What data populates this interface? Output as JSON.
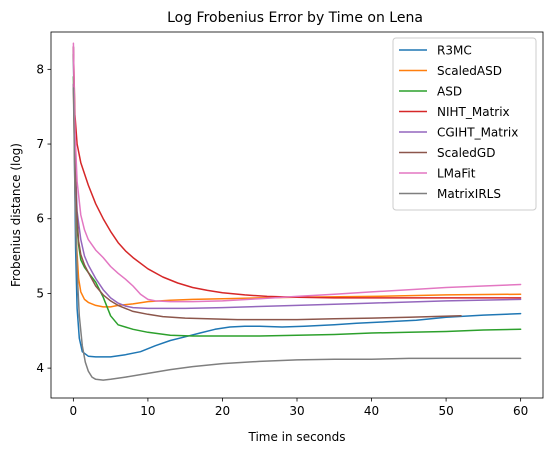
{
  "chart_data": {
    "type": "line",
    "title": "Log Frobenius Error by Time on Lena",
    "xlabel": "Time in seconds",
    "ylabel": "Frobenius distance (log)",
    "xlim": [
      -3,
      63
    ],
    "ylim": [
      3.6,
      8.5
    ],
    "xticks": [
      0,
      10,
      20,
      30,
      40,
      50,
      60
    ],
    "yticks": [
      4,
      5,
      6,
      7,
      8
    ],
    "grid": false,
    "legend_position": "top-right",
    "series": [
      {
        "name": "R3MC",
        "color": "#1f77b4",
        "points": [
          [
            0,
            8.3
          ],
          [
            0.15,
            6.8
          ],
          [
            0.3,
            5.6
          ],
          [
            0.5,
            4.8
          ],
          [
            0.8,
            4.4
          ],
          [
            1.2,
            4.22
          ],
          [
            2,
            4.16
          ],
          [
            3,
            4.15
          ],
          [
            5,
            4.15
          ],
          [
            7,
            4.18
          ],
          [
            9,
            4.22
          ],
          [
            11,
            4.3
          ],
          [
            13,
            4.37
          ],
          [
            15,
            4.42
          ],
          [
            17,
            4.47
          ],
          [
            19,
            4.52
          ],
          [
            21,
            4.55
          ],
          [
            23,
            4.56
          ],
          [
            25,
            4.56
          ],
          [
            28,
            4.55
          ],
          [
            31,
            4.56
          ],
          [
            35,
            4.58
          ],
          [
            38,
            4.6
          ],
          [
            42,
            4.62
          ],
          [
            46,
            4.64
          ],
          [
            50,
            4.68
          ],
          [
            55,
            4.71
          ],
          [
            60,
            4.73
          ]
        ]
      },
      {
        "name": "ScaledASD",
        "color": "#ff7f0e",
        "points": [
          [
            0,
            7.8
          ],
          [
            0.2,
            6.6
          ],
          [
            0.4,
            5.7
          ],
          [
            0.7,
            5.2
          ],
          [
            1,
            5.02
          ],
          [
            1.5,
            4.92
          ],
          [
            2,
            4.88
          ],
          [
            3,
            4.84
          ],
          [
            4,
            4.82
          ],
          [
            5,
            4.82
          ],
          [
            6,
            4.84
          ],
          [
            8,
            4.86
          ],
          [
            10,
            4.89
          ],
          [
            13,
            4.91
          ],
          [
            16,
            4.92
          ],
          [
            20,
            4.93
          ],
          [
            25,
            4.94
          ],
          [
            30,
            4.95
          ],
          [
            40,
            4.96
          ],
          [
            50,
            4.98
          ],
          [
            60,
            4.99
          ]
        ]
      },
      {
        "name": "ASD",
        "color": "#2ca02c",
        "points": [
          [
            0,
            7.9
          ],
          [
            0.2,
            6.8
          ],
          [
            0.4,
            6.0
          ],
          [
            0.7,
            5.65
          ],
          [
            1,
            5.45
          ],
          [
            1.5,
            5.35
          ],
          [
            2,
            5.28
          ],
          [
            3,
            5.15
          ],
          [
            4,
            4.95
          ],
          [
            5,
            4.7
          ],
          [
            6,
            4.58
          ],
          [
            8,
            4.52
          ],
          [
            10,
            4.48
          ],
          [
            13,
            4.44
          ],
          [
            16,
            4.43
          ],
          [
            20,
            4.43
          ],
          [
            25,
            4.43
          ],
          [
            30,
            4.44
          ],
          [
            35,
            4.45
          ],
          [
            40,
            4.47
          ],
          [
            45,
            4.48
          ],
          [
            50,
            4.49
          ],
          [
            55,
            4.51
          ],
          [
            60,
            4.52
          ]
        ]
      },
      {
        "name": "NIHT_Matrix",
        "color": "#d62728",
        "points": [
          [
            0,
            8.3
          ],
          [
            0.2,
            7.4
          ],
          [
            0.5,
            7.0
          ],
          [
            1,
            6.75
          ],
          [
            2,
            6.45
          ],
          [
            3,
            6.2
          ],
          [
            4,
            6.0
          ],
          [
            5,
            5.83
          ],
          [
            6,
            5.68
          ],
          [
            7,
            5.57
          ],
          [
            8,
            5.48
          ],
          [
            10,
            5.33
          ],
          [
            12,
            5.22
          ],
          [
            14,
            5.14
          ],
          [
            16,
            5.08
          ],
          [
            18,
            5.04
          ],
          [
            20,
            5.01
          ],
          [
            23,
            4.98
          ],
          [
            26,
            4.96
          ],
          [
            30,
            4.95
          ],
          [
            35,
            4.94
          ],
          [
            40,
            4.94
          ],
          [
            45,
            4.94
          ],
          [
            50,
            4.94
          ],
          [
            55,
            4.94
          ],
          [
            60,
            4.94
          ]
        ]
      },
      {
        "name": "CGIHT_Matrix",
        "color": "#9467bd",
        "points": [
          [
            0,
            7.8
          ],
          [
            0.2,
            6.9
          ],
          [
            0.5,
            6.1
          ],
          [
            1,
            5.72
          ],
          [
            1.5,
            5.5
          ],
          [
            2,
            5.38
          ],
          [
            3,
            5.2
          ],
          [
            4,
            5.05
          ],
          [
            5,
            4.94
          ],
          [
            6,
            4.87
          ],
          [
            7,
            4.83
          ],
          [
            8,
            4.81
          ],
          [
            10,
            4.8
          ],
          [
            15,
            4.8
          ],
          [
            20,
            4.81
          ],
          [
            30,
            4.84
          ],
          [
            40,
            4.87
          ],
          [
            50,
            4.9
          ],
          [
            60,
            4.92
          ]
        ]
      },
      {
        "name": "ScaledGD",
        "color": "#8c564b",
        "points": [
          [
            0,
            8.2
          ],
          [
            0.2,
            7.0
          ],
          [
            0.4,
            6.2
          ],
          [
            0.7,
            5.7
          ],
          [
            1,
            5.52
          ],
          [
            1.5,
            5.38
          ],
          [
            2,
            5.28
          ],
          [
            3,
            5.1
          ],
          [
            4,
            4.98
          ],
          [
            5,
            4.9
          ],
          [
            6,
            4.84
          ],
          [
            7,
            4.8
          ],
          [
            8,
            4.76
          ],
          [
            10,
            4.72
          ],
          [
            12,
            4.69
          ],
          [
            15,
            4.67
          ],
          [
            18,
            4.66
          ],
          [
            22,
            4.65
          ],
          [
            26,
            4.65
          ],
          [
            30,
            4.65
          ],
          [
            35,
            4.66
          ],
          [
            40,
            4.67
          ],
          [
            45,
            4.68
          ],
          [
            52,
            4.7
          ]
        ]
      },
      {
        "name": "LMaFit",
        "color": "#e377c2",
        "points": [
          [
            0,
            8.35
          ],
          [
            0.2,
            7.2
          ],
          [
            0.5,
            6.5
          ],
          [
            1,
            6.05
          ],
          [
            1.5,
            5.85
          ],
          [
            2,
            5.72
          ],
          [
            3,
            5.58
          ],
          [
            4,
            5.48
          ],
          [
            5,
            5.36
          ],
          [
            6,
            5.27
          ],
          [
            7,
            5.19
          ],
          [
            8,
            5.1
          ],
          [
            9,
            4.99
          ],
          [
            10,
            4.92
          ],
          [
            11,
            4.9
          ],
          [
            13,
            4.89
          ],
          [
            16,
            4.89
          ],
          [
            20,
            4.9
          ],
          [
            25,
            4.93
          ],
          [
            30,
            4.96
          ],
          [
            35,
            4.99
          ],
          [
            40,
            5.02
          ],
          [
            45,
            5.05
          ],
          [
            50,
            5.08
          ],
          [
            55,
            5.1
          ],
          [
            60,
            5.12
          ]
        ]
      },
      {
        "name": "MatrixIRLS",
        "color": "#7f7f7f",
        "points": [
          [
            0,
            7.75
          ],
          [
            0.2,
            6.4
          ],
          [
            0.5,
            5.3
          ],
          [
            0.8,
            4.7
          ],
          [
            1.2,
            4.3
          ],
          [
            1.6,
            4.08
          ],
          [
            2,
            3.96
          ],
          [
            2.5,
            3.88
          ],
          [
            3,
            3.85
          ],
          [
            4,
            3.84
          ],
          [
            5,
            3.85
          ],
          [
            7,
            3.88
          ],
          [
            10,
            3.93
          ],
          [
            13,
            3.98
          ],
          [
            16,
            4.02
          ],
          [
            20,
            4.06
          ],
          [
            25,
            4.09
          ],
          [
            30,
            4.11
          ],
          [
            35,
            4.12
          ],
          [
            40,
            4.12
          ],
          [
            45,
            4.13
          ],
          [
            50,
            4.13
          ],
          [
            55,
            4.13
          ],
          [
            60,
            4.13
          ]
        ]
      }
    ]
  }
}
